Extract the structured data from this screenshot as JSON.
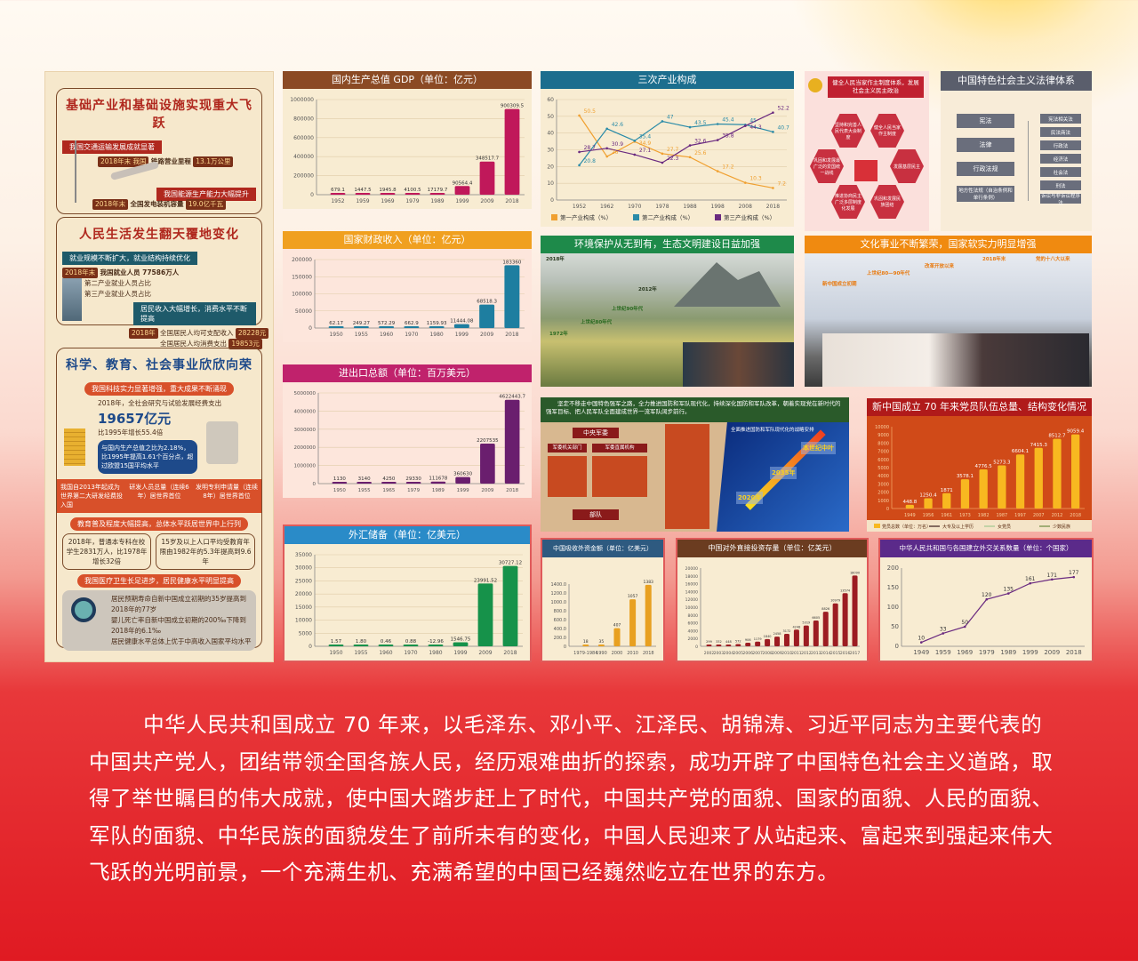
{
  "left": {
    "infra": {
      "title": "基础产业和基础设施实现重大飞跃",
      "banner1": "我国交通运输发展成就显著",
      "year_badge": "2018年末 我国",
      "rail": "铁路营业里程",
      "rail_val": "13.1万公里",
      "banner2": "我国能源生产能力大幅提升",
      "power_year": "2018年末",
      "power": "全国发电装机容量",
      "power_val": "19.0亿千瓦"
    },
    "life": {
      "title": "人民生活发生翻天覆地变化",
      "banner1": "就业规模不断扩大，就业结构持续优化",
      "jobs_year": "2018年末",
      "jobs": "我国就业人员 77586万人",
      "line2": "第二产业就业人员占比",
      "line3": "第三产业就业人员占比",
      "banner2": "居民收入大幅增长，消费水平不断提高",
      "inc_year": "2018年",
      "income": "全国居民人均可支配收入",
      "income_val": "28228元",
      "spend": "全国居民人均消费支出",
      "spend_val": "19853元"
    },
    "sci": {
      "title": "科学、教育、社会事业欣欣向荣",
      "banner1": "我国科技实力显著增强，重大成果不断涌现",
      "rd_line": "2018年，全社会研究与试验发展经费支出",
      "rd_val": "19657亿元",
      "rd_growth": "比1995年增长55.4倍",
      "rd_ratio": "与国内生产总值之比为2.18%，比1995年提高1.61个百分点，超过欧盟15国平均水平",
      "rd_rank": "我国自2013年起成为世界第二大研发经费投入国",
      "staff": "研发人员总量（连续6年）居世界首位",
      "patent": "发明专利申请量（连续8年）居世界首位",
      "banner2": "教育普及程度大幅提高，总体水平跃居世界中上行列",
      "edu1": "2018年，普通本专科在校学生2831万人，比1978年增长32倍",
      "edu2": "15岁及以上人口平均受教育年限由1982年的5.3年提高到9.6年",
      "banner3": "我国医疗卫生长足进步，居民健康水平明显提高",
      "health1": "居民预期寿命自新中国成立初期的35岁提高到2018年的77岁",
      "health2": "婴儿死亡率自新中国成立初期的200‰下降到2018年的6.1‰",
      "health3": "居民健康水平总体上优于中高收入国家平均水平"
    }
  },
  "democracy": {
    "title": "健全人民当家作主制度体系，发展社会主义民主政治",
    "items": [
      "坚持和完善人民代表大会制度",
      "健全人民当家作主制度",
      "巩固和发展最广泛的爱国统一战线",
      "发展基层民主",
      "推进协商民主广泛多层制度化发展",
      "巩固和发展民族团结"
    ]
  },
  "law": {
    "title": "中国特色社会主义法律体系",
    "left": [
      "宪法",
      "法律",
      "行政法规",
      "地方性法规（自治条例和单行条例）"
    ],
    "right": [
      "宪法相关法",
      "民法商法",
      "行政法",
      "经济法",
      "社会法",
      "刑法",
      "诉讼与非诉讼程序法"
    ]
  },
  "environment": {
    "title": "环境保护从无到有，生态文明建设日益加强",
    "notes": [
      "2018年",
      "2012年",
      "上世纪90年代",
      "上世纪80年代",
      "1972年"
    ]
  },
  "culture": {
    "title": "文化事业不断繁荣，国家软实力明显增强",
    "notes": [
      "新中国成立初期",
      "上世纪80—90年代",
      "改革开放以来",
      "2018年末",
      "党的十八大以来"
    ]
  },
  "military": {
    "header": "坚定不移走中国特色强军之路，全力推进国防和军队现代化，持续深化国防和军队改革，朝着实现党在新时代的强军目标、把人民军队全面建成世界一流军队阔步前行。",
    "cmc": "中央军委",
    "org1": "军委机关部门",
    "org2": "军委直属机构",
    "troops": "部队",
    "roadmap_title": "全面推进国防和军队现代化的战略安排",
    "milestones": [
      "本世纪中叶",
      "2035年",
      "2020年"
    ]
  },
  "colors": {
    "gdp": "#c0185a",
    "fiscal": "#1e7ea0",
    "trade": "#6a1e6e",
    "fx": "#16924a",
    "fdi": "#e8a020",
    "odi": "#9c1c22",
    "party": "#f8b820"
  },
  "chart_data": [
    {
      "id": "gdp",
      "type": "bar",
      "title": "国内生产总值 GDP（单位：亿元）",
      "categories": [
        "1952",
        "1959",
        "1969",
        "1979",
        "1989",
        "1999",
        "2009",
        "2018"
      ],
      "values": [
        679.1,
        1447.5,
        1945.8,
        4100.5,
        17179.7,
        90564.4,
        348517.7,
        900309.5
      ],
      "labels": [
        "679.1",
        "1447.5",
        "1945.8",
        "4100.5",
        "17179.7",
        "90564.4",
        "348517.7",
        "900309.5"
      ],
      "ylim": [
        0,
        1000000
      ],
      "ticks": [
        "0",
        "200000",
        "400000",
        "600000",
        "800000",
        "1000000"
      ],
      "grid": true
    },
    {
      "id": "fiscal",
      "type": "bar",
      "title": "国家财政收入（单位：亿元）",
      "categories": [
        "1950",
        "1955",
        "1960",
        "1970",
        "1980",
        "1999",
        "2009",
        "2018"
      ],
      "values": [
        62.17,
        249.27,
        572.29,
        662.9,
        1159.93,
        11444.08,
        68518.3,
        183360
      ],
      "labels": [
        "62.17",
        "249.27",
        "572.29",
        "662.9",
        "1159.93",
        "11444.08",
        "68518.3",
        "183360"
      ],
      "ylim": [
        0,
        200000
      ],
      "ticks": [
        "0",
        "50000",
        "100000",
        "150000",
        "200000"
      ],
      "grid": true
    },
    {
      "id": "trade",
      "type": "bar",
      "title": "进出口总额（单位：百万美元）",
      "categories": [
        "1950",
        "1955",
        "1965",
        "1979",
        "1989",
        "1999",
        "2009",
        "2018"
      ],
      "values": [
        1130,
        3140,
        4250,
        29330,
        111678,
        360630,
        2207535,
        4622443.7
      ],
      "labels": [
        "1130",
        "3140",
        "4250",
        "29330",
        "111678",
        "360630",
        "2207535",
        "4622443.7"
      ],
      "ylim": [
        0,
        5000000
      ],
      "ticks": [
        "0",
        "1000000",
        "2000000",
        "3000000",
        "4000000",
        "5000000"
      ],
      "grid": true
    },
    {
      "id": "fx",
      "type": "bar",
      "title": "外汇储备（单位：亿美元）",
      "categories": [
        "1950",
        "1955",
        "1960",
        "1970",
        "1980",
        "1999",
        "2009",
        "2018"
      ],
      "values": [
        1.57,
        1.8,
        0.46,
        0.88,
        -12.96,
        1546.75,
        23991.52,
        30727.12
      ],
      "labels": [
        "1.57",
        "1.80",
        "0.46",
        "0.88",
        "-12.96",
        "1546.75",
        "23991.52",
        "30727.12"
      ],
      "ylim": [
        0,
        35000
      ],
      "ticks": [
        "0",
        "5000",
        "10000",
        "15000",
        "20000",
        "25000",
        "30000",
        "35000"
      ],
      "grid": true
    },
    {
      "id": "industry",
      "type": "line",
      "title": "三次产业构成",
      "categories": [
        "1952",
        "1962",
        "1970",
        "1978",
        "1988",
        "1998",
        "2008",
        "2018"
      ],
      "series": [
        {
          "name": "第一产业构成（%）",
          "color": "#f0a030",
          "values": [
            50.5,
            26,
            34.9,
            27.7,
            25.6,
            17.2,
            10.3,
            7.2
          ]
        },
        {
          "name": "第二产业构成（%）",
          "color": "#2a8ba8",
          "values": [
            20.8,
            42.6,
            35.4,
            47,
            43.5,
            45.4,
            45,
            40.7
          ]
        },
        {
          "name": "第三产业构成（%）",
          "color": "#6a2a80",
          "values": [
            28.7,
            30.9,
            27.1,
            22.3,
            32.6,
            35.8,
            44.3,
            52.2
          ]
        }
      ],
      "ylim": [
        0,
        60
      ],
      "ticks": [
        "0",
        "10",
        "20",
        "30",
        "40",
        "50",
        "60"
      ],
      "grid": true,
      "legend": "bottom"
    },
    {
      "id": "party",
      "type": "bar",
      "title": "新中国成立 70 年来党员队伍总量、结构变化情况",
      "categories": [
        "1949",
        "1956",
        "1961",
        "1973",
        "1982",
        "1987",
        "1997",
        "2007",
        "2012",
        "2018"
      ],
      "values": [
        448.8,
        1250.4,
        1871,
        3578.1,
        4776.5,
        5273.3,
        6604.1,
        7415.3,
        8512.7,
        9059.4
      ],
      "labels": [
        "448.8",
        "1250.4",
        "1871",
        "3578.1",
        "4776.5",
        "5273.3",
        "6604.1",
        "7415.3",
        "8512.7",
        "9059.4"
      ],
      "ylim": [
        0,
        10000
      ],
      "ticks": [
        "0",
        "1000",
        "2000",
        "3000",
        "4000",
        "5000",
        "6000",
        "7000",
        "8000",
        "9000",
        "10000"
      ],
      "legend_items": [
        "党员总数（单位：万名）",
        "大专及以上学历",
        "女党员",
        "少数民族"
      ],
      "legend": "bottom"
    },
    {
      "id": "fdi",
      "type": "bar",
      "title": "中国吸收外资金额（单位：亿美元）",
      "categories": [
        "1979-1984",
        "1990",
        "2000",
        "2010",
        "2018"
      ],
      "values": [
        18,
        35,
        407,
        1057,
        1383
      ],
      "labels": [
        "18",
        "35",
        "407",
        "1057",
        "1383"
      ],
      "ylim": [
        0,
        1400
      ],
      "ticks": [
        "0",
        "200.0",
        "400.0",
        "600.0",
        "800.0",
        "1000.0",
        "1200.0",
        "1400.0"
      ]
    },
    {
      "id": "odi",
      "type": "bar",
      "title": "中国对外直接投资存量（单位：亿美元）",
      "categories": [
        "2002",
        "2003",
        "2004",
        "2005",
        "2006",
        "2007",
        "2008",
        "2009",
        "2010",
        "2011",
        "2012",
        "2013",
        "2014",
        "2015",
        "2016",
        "2017"
      ],
      "values": [
        299,
        332,
        448,
        572,
        906,
        1179,
        1840,
        2458,
        3172,
        4248,
        5319,
        6605,
        8826,
        10979,
        13574,
        18090
      ],
      "labels": [
        "299",
        "332",
        "448",
        "572",
        "906",
        "1179",
        "1840",
        "2458",
        "3172",
        "4248",
        "5319",
        "6605",
        "8826",
        "10979",
        "13574",
        "18090"
      ],
      "ylim": [
        0,
        20000
      ],
      "ticks": [
        "0",
        "2000",
        "4000",
        "6000",
        "8000",
        "10000",
        "12000",
        "14000",
        "16000",
        "18000",
        "20000"
      ]
    },
    {
      "id": "diplo",
      "type": "line",
      "title": "中华人民共和国与各国建立外交关系数量（单位：个国家）",
      "categories": [
        "1949",
        "1959",
        "1969",
        "1979",
        "1989",
        "1999",
        "2009",
        "2018"
      ],
      "series": [
        {
          "color": "#6a2a80",
          "values": [
            10,
            33,
            50,
            120,
            135,
            161,
            171,
            177
          ]
        }
      ],
      "ylim": [
        0,
        200
      ],
      "ticks": [
        "0",
        "50",
        "100",
        "150",
        "200"
      ],
      "point_labels": true
    }
  ],
  "paragraph": "中华人民共和国成立 70 年来，以毛泽东、邓小平、江泽民、胡锦涛、习近平同志为主要代表的中国共产党人，团结带领全国各族人民，经历艰难曲折的探索，成功开辟了中国特色社会主义道路，取得了举世瞩目的伟大成就，使中国大踏步赶上了时代，中国共产党的面貌、国家的面貌、人民的面貌、军队的面貌、中华民族的面貌发生了前所未有的变化，中国人民迎来了从站起来、富起来到强起来伟大飞跃的光明前景，一个充满生机、充满希望的中国已经巍然屹立在世界的东方。"
}
